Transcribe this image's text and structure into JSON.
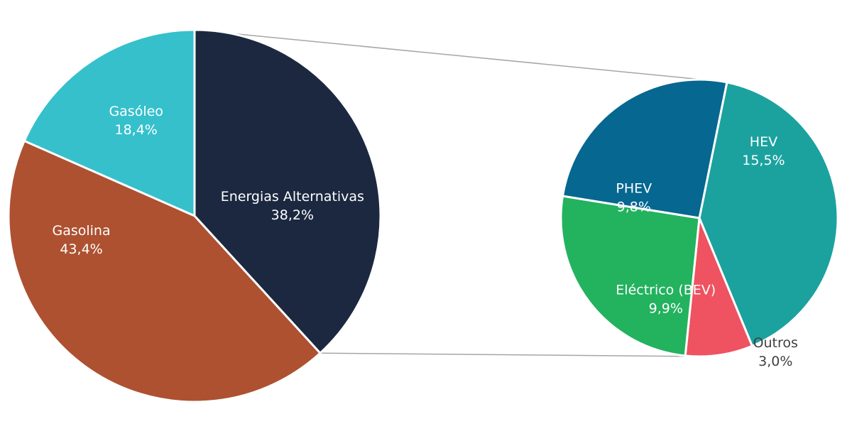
{
  "chart_data": [
    {
      "type": "pie",
      "title": "",
      "slices": [
        {
          "label": "Gasóleo",
          "value_label": "18,4%",
          "value": 18.4,
          "color": "#35c0cc"
        },
        {
          "label": "Energias Alternativas",
          "value_label": "38,2%",
          "value": 38.2,
          "color": "#1b2840"
        },
        {
          "label": "Gasolina",
          "value_label": "43,4%",
          "value": 43.4,
          "color": "#ad5131"
        }
      ]
    },
    {
      "type": "pie",
      "title": "",
      "breakdown_of": "Energias Alternativas",
      "slices": [
        {
          "label": "HEV",
          "value_label": "15,5%",
          "value": 15.5,
          "color": "#1ba29f"
        },
        {
          "label": "Outros",
          "value_label": "3,0%",
          "value": 3.0,
          "color": "#ef5260"
        },
        {
          "label": "Eléctrico (BEV)",
          "value_label": "9,9%",
          "value": 9.9,
          "color": "#23b25e"
        },
        {
          "label": "PHEV",
          "value_label": "9,8%",
          "value": 9.8,
          "color": "#066790"
        }
      ]
    }
  ]
}
